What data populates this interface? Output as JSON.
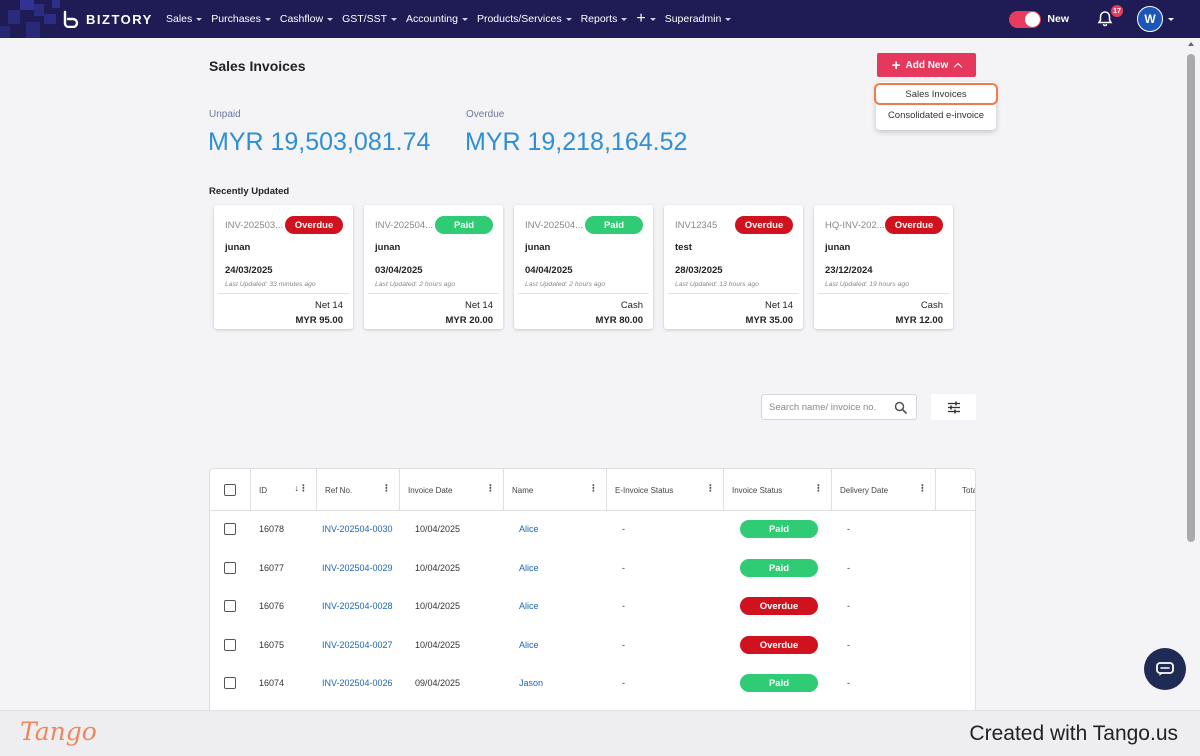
{
  "nav": {
    "brand": "BIZTORY",
    "items": [
      {
        "label": "Sales"
      },
      {
        "label": "Purchases"
      },
      {
        "label": "Cashflow"
      },
      {
        "label": "GST/SST"
      },
      {
        "label": "Accounting"
      },
      {
        "label": "Products/Services"
      },
      {
        "label": "Reports"
      },
      {
        "label": "+"
      },
      {
        "label": "Superadmin"
      }
    ],
    "toggle_label": "New",
    "notification_count": "17",
    "avatar_initial": "W"
  },
  "page": {
    "title": "Sales Invoices",
    "add_new_label": "Add New",
    "dropdown": [
      "Sales Invoices",
      "Consolidated e-invoice"
    ]
  },
  "stats": {
    "unpaid_label": "Unpaid",
    "unpaid_value": "MYR 19,503,081.74",
    "overdue_label": "Overdue",
    "overdue_value": "MYR 19,218,164.52"
  },
  "recent": {
    "title": "Recently Updated",
    "cards": [
      {
        "invoice": "INV-202503...",
        "status": "Overdue",
        "name": "junan",
        "date": "24/03/2025",
        "updated": "Last Updated: 33 minutes ago",
        "terms": "Net 14",
        "amount": "MYR 95.00"
      },
      {
        "invoice": "INV-202504...",
        "status": "Paid",
        "name": "junan",
        "date": "03/04/2025",
        "updated": "Last Updated: 2 hours ago",
        "terms": "Net 14",
        "amount": "MYR 20.00"
      },
      {
        "invoice": "INV-202504...",
        "status": "Paid",
        "name": "junan",
        "date": "04/04/2025",
        "updated": "Last Updated: 2 hours ago",
        "terms": "Cash",
        "amount": "MYR 80.00"
      },
      {
        "invoice": "INV12345",
        "status": "Overdue",
        "name": "test",
        "date": "28/03/2025",
        "updated": "Last Updated: 13 hours ago",
        "terms": "Net 14",
        "amount": "MYR 35.00"
      },
      {
        "invoice": "HQ-INV-202...",
        "status": "Overdue",
        "name": "junan",
        "date": "23/12/2024",
        "updated": "Last Updated: 19 hours ago",
        "terms": "Cash",
        "amount": "MYR 12.00"
      }
    ]
  },
  "search": {
    "placeholder": "Search name/ invoice no."
  },
  "table": {
    "columns": [
      "ID",
      "Ref No.",
      "Invoice Date",
      "Name",
      "E-Invoice Status",
      "Invoice Status",
      "Delivery Date",
      "Tota"
    ],
    "rows": [
      {
        "id": "16078",
        "ref": "INV-202504-0030",
        "date": "10/04/2025",
        "name": "Alice",
        "einvoice": "-",
        "status": "Paid",
        "delivery": "-"
      },
      {
        "id": "16077",
        "ref": "INV-202504-0029",
        "date": "10/04/2025",
        "name": "Alice",
        "einvoice": "-",
        "status": "Paid",
        "delivery": "-"
      },
      {
        "id": "16076",
        "ref": "INV-202504-0028",
        "date": "10/04/2025",
        "name": "Alice",
        "einvoice": "-",
        "status": "Overdue",
        "delivery": "-"
      },
      {
        "id": "16075",
        "ref": "INV-202504-0027",
        "date": "10/04/2025",
        "name": "Alice",
        "einvoice": "-",
        "status": "Overdue",
        "delivery": "-"
      },
      {
        "id": "16074",
        "ref": "INV-202504-0026",
        "date": "09/04/2025",
        "name": "Jason",
        "einvoice": "-",
        "status": "Paid",
        "delivery": "-"
      }
    ]
  },
  "footer": {
    "logo": "Tango",
    "created": "Created with Tango.us"
  },
  "colors": {
    "nav_bg": "#1f1c55",
    "accent": "#e6375d",
    "paid": "#2fcb75",
    "overdue": "#d0121e",
    "amount": "#2e8fd6",
    "link": "#1d66b8"
  }
}
